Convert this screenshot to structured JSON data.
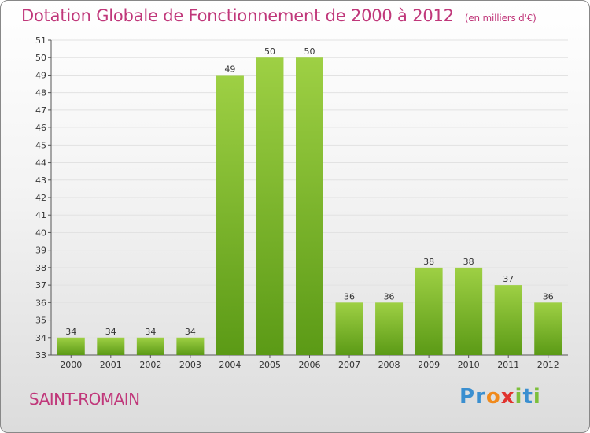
{
  "title": "Dotation Globale de Fonctionnement de 2000 à 2012",
  "subtitle": "(en milliers d'€)",
  "commune": "SAINT-ROMAIN",
  "logo_text": "Proxiti",
  "colors": {
    "title": "#c0377a",
    "bar_top": "#9ed044",
    "bar_bottom": "#5b9a16",
    "grid": "#e2e2e2"
  },
  "chart_data": {
    "type": "bar",
    "title": "Dotation Globale de Fonctionnement de 2000 à 2012",
    "subtitle": "(en milliers d'€)",
    "xlabel": "",
    "ylabel": "",
    "categories": [
      "2000",
      "2001",
      "2002",
      "2003",
      "2004",
      "2005",
      "2006",
      "2007",
      "2008",
      "2009",
      "2010",
      "2011",
      "2012"
    ],
    "values": [
      34,
      34,
      34,
      34,
      49,
      50,
      50,
      36,
      36,
      38,
      38,
      37,
      36
    ],
    "ylim": [
      33,
      51
    ],
    "yticks": [
      33,
      34,
      35,
      36,
      37,
      38,
      39,
      40,
      41,
      42,
      43,
      44,
      45,
      46,
      47,
      48,
      49,
      50,
      51
    ],
    "grid": true,
    "data_labels": true
  }
}
